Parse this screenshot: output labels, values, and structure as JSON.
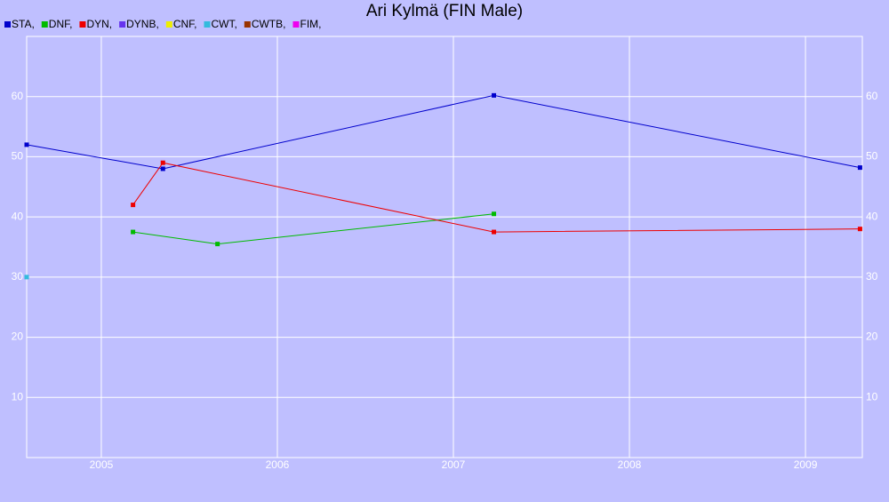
{
  "chart_data": {
    "type": "line",
    "title": "Ari Kylmä (FIN Male)",
    "xlim": [
      2004.576,
      2009.323
    ],
    "xticks": [
      2005,
      2006,
      2007,
      2008,
      2009
    ],
    "ylim": [
      0,
      70
    ],
    "yticks": [
      10,
      20,
      30,
      40,
      50,
      60
    ],
    "grid": true,
    "series": [
      {
        "name": "STA,",
        "color": "#0000cc",
        "x": [
          2004.576,
          2005.35,
          2007.23,
          2009.31
        ],
        "values": [
          52,
          48,
          60.2,
          48.2
        ]
      },
      {
        "name": "DNF,",
        "color": "#00bb00",
        "x": [
          2005.18,
          2005.66,
          2007.23
        ],
        "values": [
          37.5,
          35.5,
          40.5
        ]
      },
      {
        "name": "DYN,",
        "color": "#ee0000",
        "x": [
          2005.18,
          2005.35,
          2007.23,
          2009.31
        ],
        "values": [
          42,
          49,
          37.5,
          38
        ]
      },
      {
        "name": "DYNB,",
        "color": "#6633ee",
        "x": [],
        "values": []
      },
      {
        "name": "CNF,",
        "color": "#eeee00",
        "x": [],
        "values": []
      },
      {
        "name": "CWT,",
        "color": "#33bbdd",
        "x": [
          2004.576
        ],
        "values": [
          30
        ]
      },
      {
        "name": "CWTB,",
        "color": "#993300",
        "x": [],
        "values": []
      },
      {
        "name": "FIM,",
        "color": "#ee00ee",
        "x": [],
        "values": []
      }
    ]
  }
}
